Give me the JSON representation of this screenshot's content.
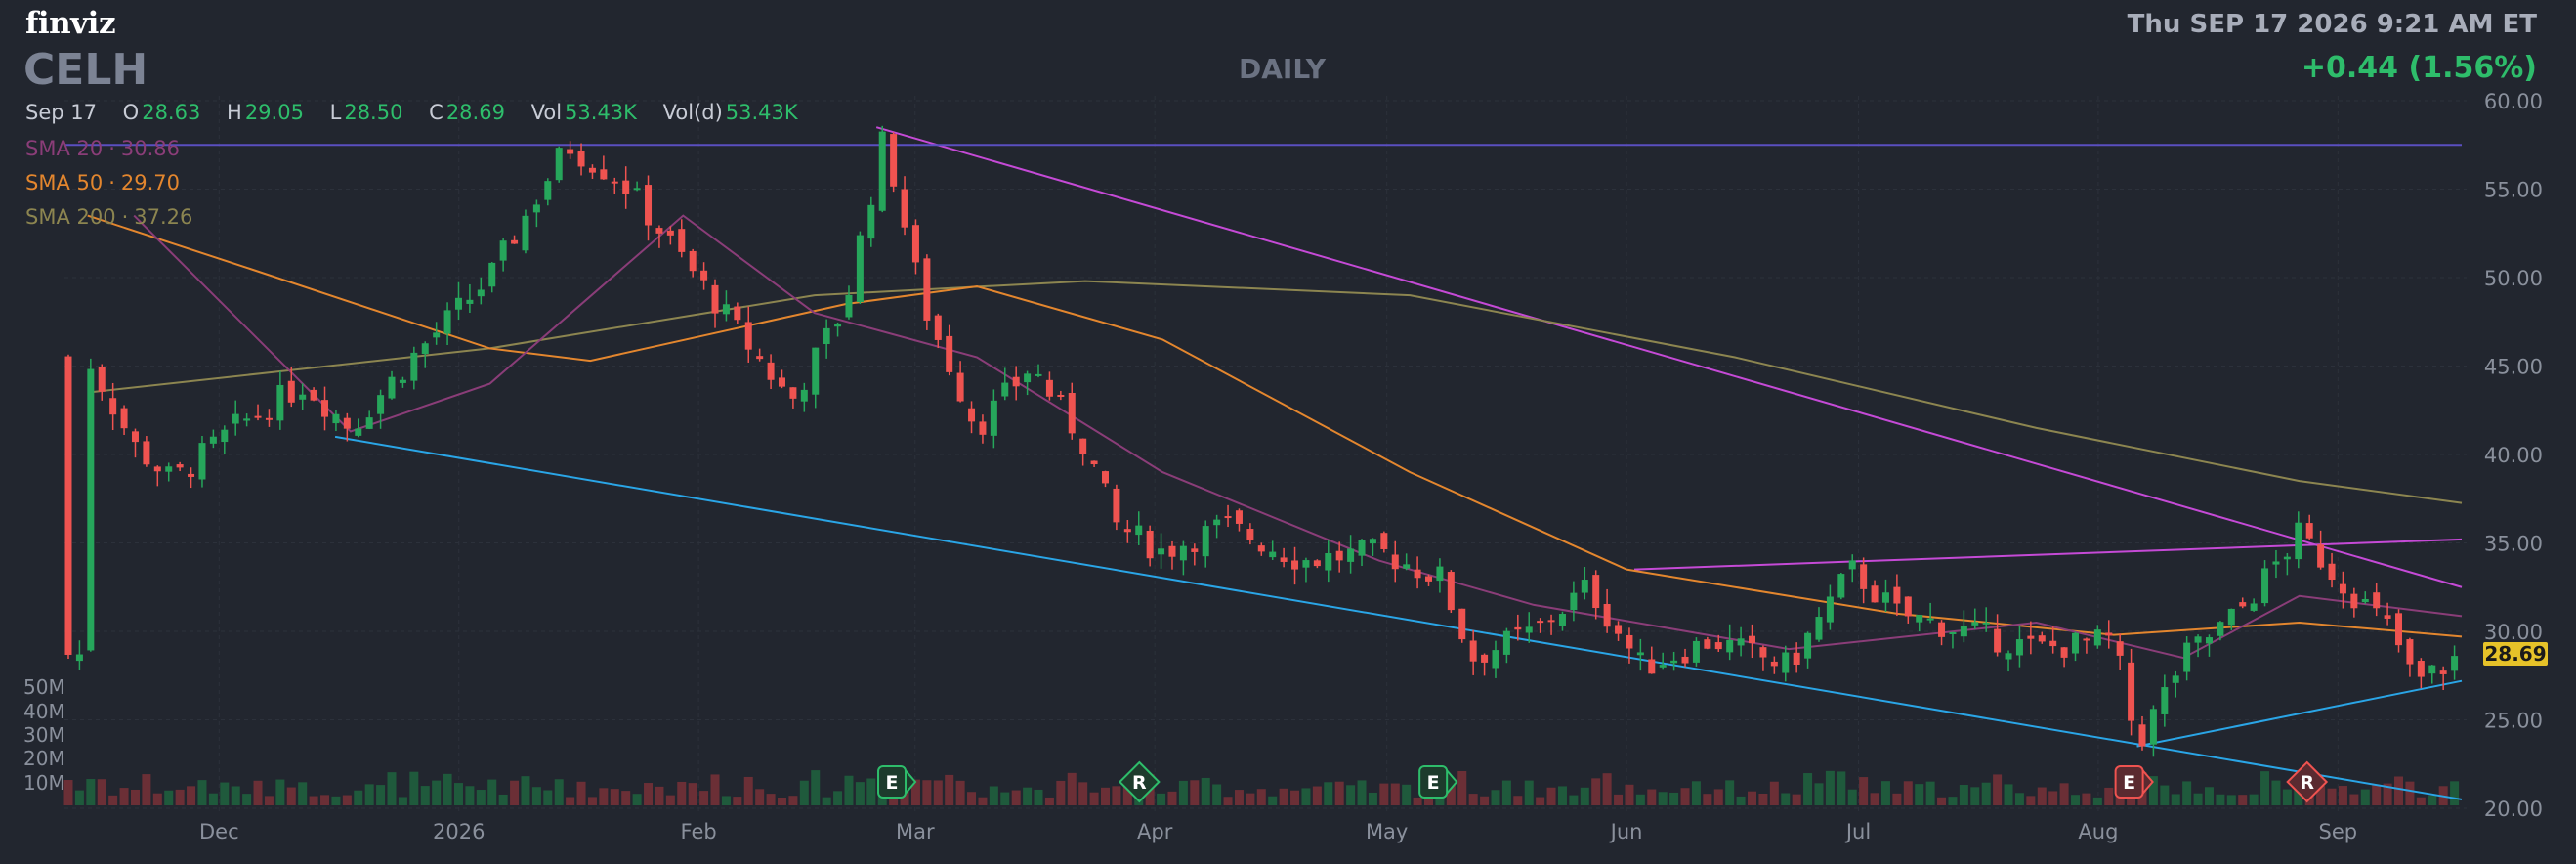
{
  "brand": "finviz",
  "ticker": "CELH",
  "timeframe": "DAILY",
  "datetime": "Thu SEP 17 2026 9:21 AM ET",
  "change": "+0.44 (1.56%)",
  "ohlc": {
    "date": "Sep 17",
    "o_label": "O",
    "o": "28.63",
    "h_label": "H",
    "h": "29.05",
    "l_label": "L",
    "l": "28.50",
    "c_label": "C",
    "c": "28.69",
    "vol_label": "Vol",
    "vol": "53.43K",
    "vold_label": "Vol(d)",
    "vold": "53.43K"
  },
  "indicators": [
    {
      "label": "SMA 20",
      "value": "30.86",
      "color": "#8a3d78"
    },
    {
      "label": "SMA 50",
      "value": "29.70",
      "color": "#e3862e"
    },
    {
      "label": "SMA 200",
      "value": "37.26",
      "color": "#8c8550"
    }
  ],
  "last_price_tag": "28.69",
  "colors": {
    "up": "#26a65b",
    "down": "#ef5350",
    "trend_magenta": "#c54ad6",
    "trend_blue": "#2aa5e6",
    "resistance": "#5a4fc0",
    "background": "#22262f"
  },
  "chart_data": {
    "type": "candlestick",
    "y_ticks": [
      "20.00",
      "25.00",
      "30.00",
      "35.00",
      "40.00",
      "45.00",
      "50.00",
      "55.00",
      "60.00"
    ],
    "ylim": [
      20,
      60
    ],
    "x_ticks": [
      "Dec",
      "2026",
      "Feb",
      "Mar",
      "Apr",
      "May",
      "Jun",
      "Jul",
      "Aug",
      "Sep"
    ],
    "volume_ticks": [
      "50M",
      "40M",
      "30M",
      "20M",
      "10M"
    ],
    "price_path": [
      {
        "date": "2025-11-14",
        "close": 45.5
      },
      {
        "date": "2025-11-20",
        "close": 40.5
      },
      {
        "date": "2025-11-25",
        "close": 38.5
      },
      {
        "date": "2025-12-03",
        "close": 41.5
      },
      {
        "date": "2025-12-12",
        "close": 44.0
      },
      {
        "date": "2025-12-18",
        "close": 41.5
      },
      {
        "date": "2025-12-26",
        "close": 45.5
      },
      {
        "date": "2026-01-05",
        "close": 50.0
      },
      {
        "date": "2026-01-15",
        "close": 57.5
      },
      {
        "date": "2026-01-22",
        "close": 55.5
      },
      {
        "date": "2026-01-30",
        "close": 51.0
      },
      {
        "date": "2026-02-06",
        "close": 47.0
      },
      {
        "date": "2026-02-13",
        "close": 43.0
      },
      {
        "date": "2026-02-20",
        "close": 48.5
      },
      {
        "date": "2026-02-25",
        "close": 58.0
      },
      {
        "date": "2026-03-02",
        "close": 48.5
      },
      {
        "date": "2026-03-09",
        "close": 41.5
      },
      {
        "date": "2026-03-16",
        "close": 45.0
      },
      {
        "date": "2026-03-23",
        "close": 40.5
      },
      {
        "date": "2026-03-27",
        "close": 36.0
      },
      {
        "date": "2026-04-02",
        "close": 34.5
      },
      {
        "date": "2026-04-10",
        "close": 36.0
      },
      {
        "date": "2026-04-20",
        "close": 34.0
      },
      {
        "date": "2026-04-30",
        "close": 34.5
      },
      {
        "date": "2026-05-08",
        "close": 33.0
      },
      {
        "date": "2026-05-12",
        "close": 28.5
      },
      {
        "date": "2026-05-20",
        "close": 30.0
      },
      {
        "date": "2026-05-27",
        "close": 32.5
      },
      {
        "date": "2026-06-03",
        "close": 28.0
      },
      {
        "date": "2026-06-12",
        "close": 29.5
      },
      {
        "date": "2026-06-22",
        "close": 28.0
      },
      {
        "date": "2026-06-30",
        "close": 33.5
      },
      {
        "date": "2026-07-06",
        "close": 31.0
      },
      {
        "date": "2026-07-15",
        "close": 30.0
      },
      {
        "date": "2026-07-24",
        "close": 29.0
      },
      {
        "date": "2026-08-03",
        "close": 29.5
      },
      {
        "date": "2026-08-06",
        "close": 23.5
      },
      {
        "date": "2026-08-12",
        "close": 28.5
      },
      {
        "date": "2026-08-19",
        "close": 31.0
      },
      {
        "date": "2026-08-27",
        "close": 35.5
      },
      {
        "date": "2026-09-01",
        "close": 33.0
      },
      {
        "date": "2026-09-08",
        "close": 30.0
      },
      {
        "date": "2026-09-11",
        "close": 27.0
      },
      {
        "date": "2026-09-17",
        "close": 28.69
      }
    ],
    "sma20": [
      {
        "date": "2025-11-20",
        "value": 53.5
      },
      {
        "date": "2025-12-18",
        "value": 41.3
      },
      {
        "date": "2026-01-05",
        "value": 44.0
      },
      {
        "date": "2026-01-30",
        "value": 53.5
      },
      {
        "date": "2026-02-16",
        "value": 48.0
      },
      {
        "date": "2026-03-09",
        "value": 45.5
      },
      {
        "date": "2026-04-02",
        "value": 39.0
      },
      {
        "date": "2026-04-30",
        "value": 34.0
      },
      {
        "date": "2026-05-20",
        "value": 31.5
      },
      {
        "date": "2026-06-22",
        "value": 29.0
      },
      {
        "date": "2026-07-24",
        "value": 30.5
      },
      {
        "date": "2026-08-12",
        "value": 28.5
      },
      {
        "date": "2026-08-27",
        "value": 32.0
      },
      {
        "date": "2026-09-17",
        "value": 30.86
      }
    ],
    "sma50": [
      {
        "date": "2025-11-14",
        "value": 53.5
      },
      {
        "date": "2025-12-05",
        "value": 50.5
      },
      {
        "date": "2026-01-05",
        "value": 46.0
      },
      {
        "date": "2026-01-18",
        "value": 45.3
      },
      {
        "date": "2026-02-20",
        "value": 48.5
      },
      {
        "date": "2026-03-09",
        "value": 49.5
      },
      {
        "date": "2026-04-02",
        "value": 46.5
      },
      {
        "date": "2026-05-04",
        "value": 39.0
      },
      {
        "date": "2026-06-01",
        "value": 33.5
      },
      {
        "date": "2026-07-06",
        "value": 31.0
      },
      {
        "date": "2026-08-03",
        "value": 29.8
      },
      {
        "date": "2026-08-27",
        "value": 30.5
      },
      {
        "date": "2026-09-17",
        "value": 29.7
      }
    ],
    "sma200": [
      {
        "date": "2025-11-14",
        "value": 43.5
      },
      {
        "date": "2026-01-05",
        "value": 46.0
      },
      {
        "date": "2026-02-16",
        "value": 49.0
      },
      {
        "date": "2026-03-23",
        "value": 49.8
      },
      {
        "date": "2026-05-04",
        "value": 49.0
      },
      {
        "date": "2026-06-15",
        "value": 45.5
      },
      {
        "date": "2026-07-24",
        "value": 41.5
      },
      {
        "date": "2026-08-27",
        "value": 38.5
      },
      {
        "date": "2026-09-17",
        "value": 37.26
      }
    ],
    "trendlines": [
      {
        "name": "descending-resistance",
        "from": {
          "date": "2026-02-24",
          "value": 58.5
        },
        "to": {
          "date": "2026-09-17",
          "value": 32.5
        },
        "color": "#c54ad6"
      },
      {
        "name": "rising-resistance",
        "from": {
          "date": "2026-06-02",
          "value": 33.5
        },
        "to": {
          "date": "2026-09-17",
          "value": 35.2
        },
        "color": "#c54ad6"
      },
      {
        "name": "descending-support",
        "from": {
          "date": "2025-12-16",
          "value": 41.0
        },
        "to": {
          "date": "2026-09-17",
          "value": 20.5
        },
        "color": "#2aa5e6"
      },
      {
        "name": "rising-support",
        "from": {
          "date": "2026-08-06",
          "value": 23.5
        },
        "to": {
          "date": "2026-09-17",
          "value": 27.2
        },
        "color": "#2aa5e6"
      },
      {
        "name": "horizontal-resistance",
        "from": {
          "date": "2025-11-11",
          "value": 57.5
        },
        "to": {
          "date": "2026-09-17",
          "value": 57.5
        },
        "color": "#5a4fc0"
      }
    ],
    "events": [
      {
        "type": "E",
        "date": "2026-02-26",
        "color": "#2ebd6b"
      },
      {
        "type": "R",
        "date": "2026-03-30",
        "color": "#2ebd6b"
      },
      {
        "type": "E",
        "date": "2026-05-07",
        "color": "#2ebd6b"
      },
      {
        "type": "E",
        "date": "2026-08-05",
        "color": "#ef5350"
      },
      {
        "type": "R",
        "date": "2026-08-28",
        "color": "#ef5350"
      }
    ]
  }
}
